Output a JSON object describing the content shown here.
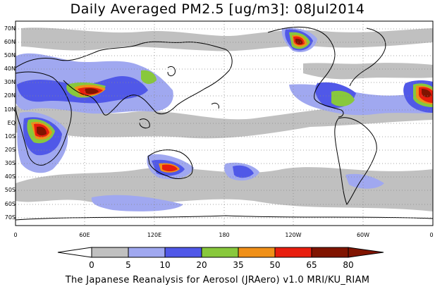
{
  "title": "Daily Averaged PM2.5 [ug/m3]: 08Jul2014",
  "footer": "The Japanese Reanalysis for Aerosol (JRAero) v1.0 MRI/KU_RIAM",
  "lat_labels": [
    "70N",
    "60N",
    "50N",
    "40N",
    "30N",
    "20N",
    "10N",
    "EQ",
    "10S",
    "20S",
    "30S",
    "40S",
    "50S",
    "60S",
    "70S"
  ],
  "lon_labels": [
    "0",
    "60E",
    "120E",
    "180",
    "120W",
    "60W",
    "0"
  ],
  "colorbar": {
    "labels": [
      "0",
      "5",
      "10",
      "20",
      "35",
      "50",
      "65",
      "80"
    ],
    "colors": [
      "#ffffff",
      "#c0c0c0",
      "#a0a8f0",
      "#5058e8",
      "#88c83c",
      "#f09018",
      "#e81e0e",
      "#801400"
    ]
  },
  "map": {
    "projection": "cylindrical equidistant",
    "lon_range": [
      "0",
      "0"
    ],
    "lat_range": [
      "75S",
      "75N"
    ],
    "grid": "dotted",
    "max_fill_color": "#801400"
  }
}
